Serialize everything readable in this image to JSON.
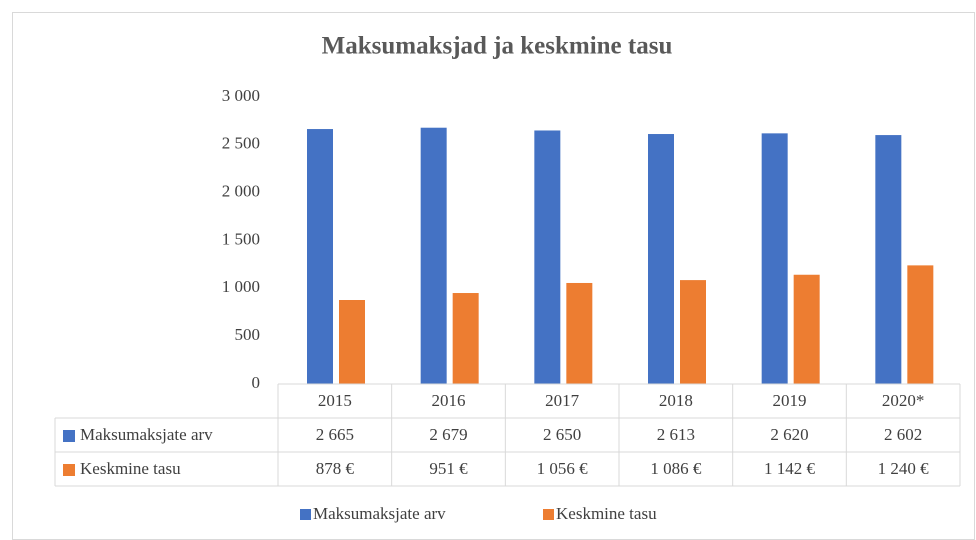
{
  "chart_data": {
    "type": "bar",
    "title": "Maksumaksjad ja keskmine tasu",
    "categories": [
      "2015",
      "2016",
      "2017",
      "2018",
      "2019",
      "2020*"
    ],
    "series": [
      {
        "name": "Maksumaksjate arv",
        "color": "#4472c4",
        "values": [
          2665,
          2679,
          2650,
          2613,
          2620,
          2602
        ],
        "value_labels": [
          "2 665",
          "2 679",
          "2 650",
          "2 613",
          "2 620",
          "2 602"
        ]
      },
      {
        "name": "Keskmine tasu",
        "color": "#ed7d31",
        "values": [
          878,
          951,
          1056,
          1086,
          1142,
          1240
        ],
        "value_labels": [
          "878 €",
          "951 €",
          "1 056 €",
          "1 086 €",
          "1 142 €",
          "1 240 €"
        ]
      }
    ],
    "ylim": [
      0,
      3000
    ],
    "yticks": [
      0,
      500,
      {
        "value": 1000,
        "label": "1 000"
      },
      {
        "value": 1500,
        "label": "1 500"
      },
      {
        "value": 2000,
        "label": "2 000"
      },
      {
        "value": 2500,
        "label": "2 500"
      },
      {
        "value": 3000,
        "label": "3 000"
      }
    ],
    "grid": false,
    "legend": "bottom",
    "data_table": true
  }
}
